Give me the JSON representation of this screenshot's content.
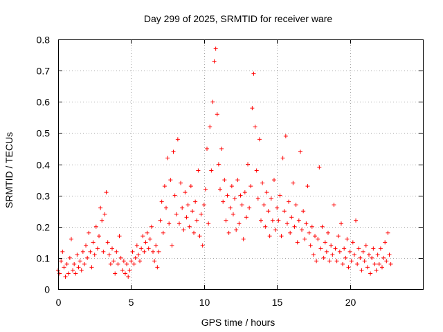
{
  "chart_data": {
    "type": "scatter",
    "title": "Day 299 of 2025, SRMTID for receiver ware",
    "xlabel": "GPS time / hours",
    "ylabel": "SRMTID / TECUs",
    "xlim": [
      0,
      25
    ],
    "ylim": [
      0,
      0.8
    ],
    "x_ticks": [
      0,
      5,
      10,
      15,
      20
    ],
    "x_tick_labels": [
      "0",
      "5",
      "10",
      "15",
      "20"
    ],
    "y_ticks": [
      0,
      0.1,
      0.2,
      0.3,
      0.4,
      0.5,
      0.6,
      0.7,
      0.8
    ],
    "y_tick_labels": [
      "0",
      "0.1",
      "0.2",
      "0.3",
      "0.4",
      "0.5",
      "0.6",
      "0.7",
      "0.8"
    ],
    "grid": true,
    "marker": "+",
    "series": [
      {
        "name": "SRMTID",
        "color": "#ff0000",
        "points": [
          [
            0.0,
            0.06
          ],
          [
            0.1,
            0.05
          ],
          [
            0.2,
            0.09
          ],
          [
            0.3,
            0.12
          ],
          [
            0.4,
            0.07
          ],
          [
            0.5,
            0.04
          ],
          [
            0.6,
            0.08
          ],
          [
            0.7,
            0.05
          ],
          [
            0.8,
            0.1
          ],
          [
            0.9,
            0.16
          ],
          [
            1.0,
            0.06
          ],
          [
            1.1,
            0.08
          ],
          [
            1.2,
            0.05
          ],
          [
            1.3,
            0.11
          ],
          [
            1.4,
            0.07
          ],
          [
            1.5,
            0.09
          ],
          [
            1.6,
            0.06
          ],
          [
            1.7,
            0.12
          ],
          [
            1.8,
            0.08
          ],
          [
            1.9,
            0.14
          ],
          [
            2.0,
            0.1
          ],
          [
            2.1,
            0.18
          ],
          [
            2.2,
            0.12
          ],
          [
            2.3,
            0.07
          ],
          [
            2.4,
            0.15
          ],
          [
            2.5,
            0.11
          ],
          [
            2.6,
            0.2
          ],
          [
            2.7,
            0.13
          ],
          [
            2.8,
            0.17
          ],
          [
            2.9,
            0.26
          ],
          [
            3.0,
            0.22
          ],
          [
            3.1,
            0.12
          ],
          [
            3.2,
            0.24
          ],
          [
            3.3,
            0.31
          ],
          [
            3.4,
            0.15
          ],
          [
            3.5,
            0.11
          ],
          [
            3.6,
            0.08
          ],
          [
            3.7,
            0.13
          ],
          [
            3.8,
            0.09
          ],
          [
            3.9,
            0.05
          ],
          [
            4.0,
            0.12
          ],
          [
            4.1,
            0.08
          ],
          [
            4.2,
            0.17
          ],
          [
            4.3,
            0.1
          ],
          [
            4.4,
            0.06
          ],
          [
            4.5,
            0.09
          ],
          [
            4.6,
            0.05
          ],
          [
            4.7,
            0.08
          ],
          [
            4.8,
            0.04
          ],
          [
            4.9,
            0.06
          ],
          [
            5.0,
            0.09
          ],
          [
            5.1,
            0.12
          ],
          [
            5.2,
            0.08
          ],
          [
            5.3,
            0.1
          ],
          [
            5.4,
            0.14
          ],
          [
            5.5,
            0.11
          ],
          [
            5.6,
            0.09
          ],
          [
            5.7,
            0.13
          ],
          [
            5.8,
            0.17
          ],
          [
            5.9,
            0.12
          ],
          [
            6.0,
            0.15
          ],
          [
            6.1,
            0.18
          ],
          [
            6.2,
            0.13
          ],
          [
            6.3,
            0.16
          ],
          [
            6.4,
            0.2
          ],
          [
            6.5,
            0.12
          ],
          [
            6.6,
            0.09
          ],
          [
            6.7,
            0.14
          ],
          [
            6.8,
            0.07
          ],
          [
            6.9,
            0.12
          ],
          [
            7.0,
            0.22
          ],
          [
            7.1,
            0.28
          ],
          [
            7.2,
            0.18
          ],
          [
            7.3,
            0.33
          ],
          [
            7.4,
            0.26
          ],
          [
            7.5,
            0.42
          ],
          [
            7.6,
            0.21
          ],
          [
            7.7,
            0.35
          ],
          [
            7.8,
            0.14
          ],
          [
            7.9,
            0.44
          ],
          [
            8.0,
            0.3
          ],
          [
            8.1,
            0.24
          ],
          [
            8.2,
            0.48
          ],
          [
            8.3,
            0.21
          ],
          [
            8.4,
            0.34
          ],
          [
            8.5,
            0.26
          ],
          [
            8.6,
            0.19
          ],
          [
            8.7,
            0.31
          ],
          [
            8.8,
            0.23
          ],
          [
            8.9,
            0.27
          ],
          [
            9.0,
            0.2
          ],
          [
            9.1,
            0.33
          ],
          [
            9.2,
            0.25
          ],
          [
            9.3,
            0.18
          ],
          [
            9.4,
            0.28
          ],
          [
            9.5,
            0.22
          ],
          [
            9.6,
            0.38
          ],
          [
            9.7,
            0.17
          ],
          [
            9.8,
            0.24
          ],
          [
            9.9,
            0.14
          ],
          [
            10.0,
            0.27
          ],
          [
            10.1,
            0.32
          ],
          [
            10.2,
            0.45
          ],
          [
            10.3,
            0.21
          ],
          [
            10.4,
            0.52
          ],
          [
            10.5,
            0.38
          ],
          [
            10.6,
            0.6
          ],
          [
            10.7,
            0.73
          ],
          [
            10.8,
            0.77
          ],
          [
            10.9,
            0.56
          ],
          [
            11.0,
            0.4
          ],
          [
            11.1,
            0.32
          ],
          [
            11.2,
            0.45
          ],
          [
            11.3,
            0.28
          ],
          [
            11.4,
            0.35
          ],
          [
            11.5,
            0.22
          ],
          [
            11.6,
            0.3
          ],
          [
            11.7,
            0.18
          ],
          [
            11.8,
            0.26
          ],
          [
            11.9,
            0.33
          ],
          [
            12.0,
            0.24
          ],
          [
            12.1,
            0.29
          ],
          [
            12.2,
            0.19
          ],
          [
            12.3,
            0.35
          ],
          [
            12.4,
            0.21
          ],
          [
            12.5,
            0.3
          ],
          [
            12.6,
            0.27
          ],
          [
            12.7,
            0.16
          ],
          [
            12.8,
            0.31
          ],
          [
            12.9,
            0.23
          ],
          [
            13.0,
            0.4
          ],
          [
            13.1,
            0.26
          ],
          [
            13.2,
            0.33
          ],
          [
            13.3,
            0.58
          ],
          [
            13.4,
            0.69
          ],
          [
            13.5,
            0.52
          ],
          [
            13.6,
            0.38
          ],
          [
            13.7,
            0.29
          ],
          [
            13.8,
            0.48
          ],
          [
            13.9,
            0.22
          ],
          [
            14.0,
            0.34
          ],
          [
            14.1,
            0.27
          ],
          [
            14.2,
            0.2
          ],
          [
            14.3,
            0.31
          ],
          [
            14.4,
            0.25
          ],
          [
            14.5,
            0.17
          ],
          [
            14.6,
            0.29
          ],
          [
            14.7,
            0.22
          ],
          [
            14.8,
            0.35
          ],
          [
            14.9,
            0.19
          ],
          [
            15.0,
            0.26
          ],
          [
            15.1,
            0.22
          ],
          [
            15.2,
            0.3
          ],
          [
            15.3,
            0.17
          ],
          [
            15.4,
            0.42
          ],
          [
            15.5,
            0.25
          ],
          [
            15.6,
            0.49
          ],
          [
            15.7,
            0.21
          ],
          [
            15.8,
            0.28
          ],
          [
            15.9,
            0.18
          ],
          [
            16.0,
            0.23
          ],
          [
            16.1,
            0.34
          ],
          [
            16.2,
            0.2
          ],
          [
            16.3,
            0.27
          ],
          [
            16.4,
            0.15
          ],
          [
            16.5,
            0.22
          ],
          [
            16.6,
            0.44
          ],
          [
            16.7,
            0.19
          ],
          [
            16.8,
            0.25
          ],
          [
            16.9,
            0.16
          ],
          [
            17.0,
            0.21
          ],
          [
            17.1,
            0.33
          ],
          [
            17.2,
            0.18
          ],
          [
            17.3,
            0.14
          ],
          [
            17.4,
            0.2
          ],
          [
            17.5,
            0.11
          ],
          [
            17.6,
            0.17
          ],
          [
            17.7,
            0.09
          ],
          [
            17.8,
            0.16
          ],
          [
            17.9,
            0.39
          ],
          [
            18.0,
            0.13
          ],
          [
            18.1,
            0.2
          ],
          [
            18.2,
            0.1
          ],
          [
            18.3,
            0.15
          ],
          [
            18.4,
            0.12
          ],
          [
            18.5,
            0.18
          ],
          [
            18.6,
            0.09
          ],
          [
            18.7,
            0.14
          ],
          [
            18.8,
            0.11
          ],
          [
            18.9,
            0.27
          ],
          [
            19.0,
            0.13
          ],
          [
            19.1,
            0.09
          ],
          [
            19.2,
            0.17
          ],
          [
            19.3,
            0.12
          ],
          [
            19.4,
            0.21
          ],
          [
            19.5,
            0.08
          ],
          [
            19.6,
            0.13
          ],
          [
            19.7,
            0.1
          ],
          [
            19.8,
            0.16
          ],
          [
            19.9,
            0.07
          ],
          [
            20.0,
            0.12
          ],
          [
            20.1,
            0.09
          ],
          [
            20.2,
            0.15
          ],
          [
            20.3,
            0.11
          ],
          [
            20.4,
            0.22
          ],
          [
            20.5,
            0.08
          ],
          [
            20.6,
            0.13
          ],
          [
            20.7,
            0.1
          ],
          [
            20.8,
            0.06
          ],
          [
            20.9,
            0.12
          ],
          [
            21.0,
            0.09
          ],
          [
            21.1,
            0.14
          ],
          [
            21.2,
            0.07
          ],
          [
            21.3,
            0.11
          ],
          [
            21.4,
            0.05
          ],
          [
            21.5,
            0.1
          ],
          [
            21.6,
            0.13
          ],
          [
            21.7,
            0.08
          ],
          [
            21.8,
            0.06
          ],
          [
            21.9,
            0.11
          ],
          [
            22.0,
            0.08
          ],
          [
            22.1,
            0.13
          ],
          [
            22.2,
            0.07
          ],
          [
            22.3,
            0.1
          ],
          [
            22.4,
            0.15
          ],
          [
            22.5,
            0.09
          ],
          [
            22.6,
            0.18
          ],
          [
            22.7,
            0.11
          ],
          [
            22.8,
            0.08
          ]
        ]
      }
    ]
  }
}
